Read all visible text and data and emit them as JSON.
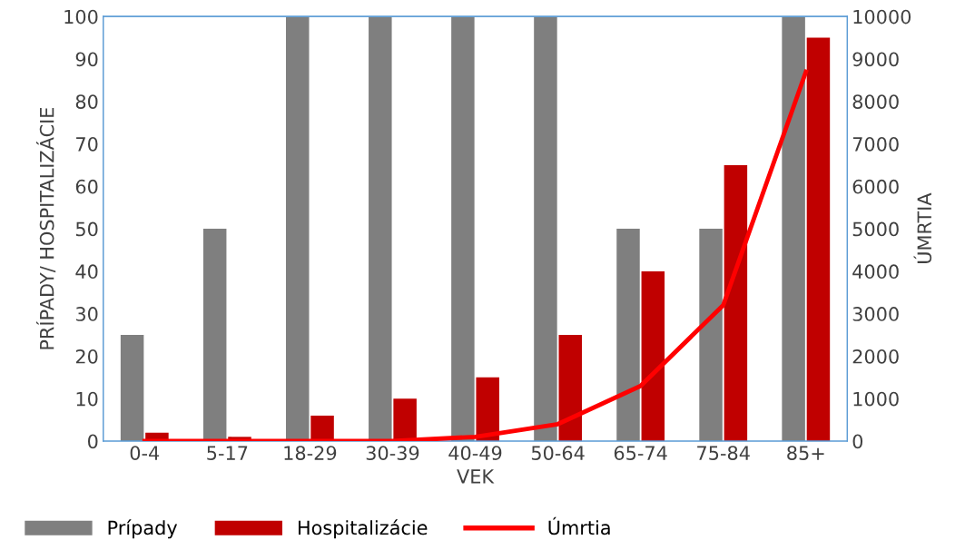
{
  "chart_data": {
    "type": "bar",
    "xlabel": "VEK",
    "ylabel": "PRÍPADY/ HOSPITALIZÁCIE",
    "y2label": "ÚMRTIA",
    "categories": [
      "0-4",
      "5-17",
      "18-29",
      "30-39",
      "40-49",
      "50-64",
      "65-74",
      "75-84",
      "85+"
    ],
    "series": [
      {
        "name": "Prípady",
        "color": "#7f7f7f",
        "values": [
          25,
          50,
          100,
          100,
          100,
          100,
          50,
          50,
          100
        ]
      },
      {
        "name": "Hospitalizácie",
        "color": "#c00000",
        "values": [
          2,
          1,
          6,
          10,
          15,
          25,
          40,
          65,
          95
        ]
      },
      {
        "name": "Úmrtia",
        "type": "line",
        "axis": "y2",
        "color": "#ff0000",
        "values": [
          0,
          0,
          0,
          0,
          100,
          400,
          1300,
          3200,
          8700
        ]
      }
    ],
    "ylim": [
      0,
      100
    ],
    "yticks": [
      0,
      10,
      20,
      30,
      40,
      50,
      60,
      70,
      80,
      90,
      100
    ],
    "y2lim": [
      0,
      10000
    ],
    "y2ticks": [
      0,
      1000,
      2000,
      3000,
      4000,
      5000,
      6000,
      7000,
      8000,
      9000,
      10000
    ],
    "grid": false,
    "legend": "bottom"
  }
}
